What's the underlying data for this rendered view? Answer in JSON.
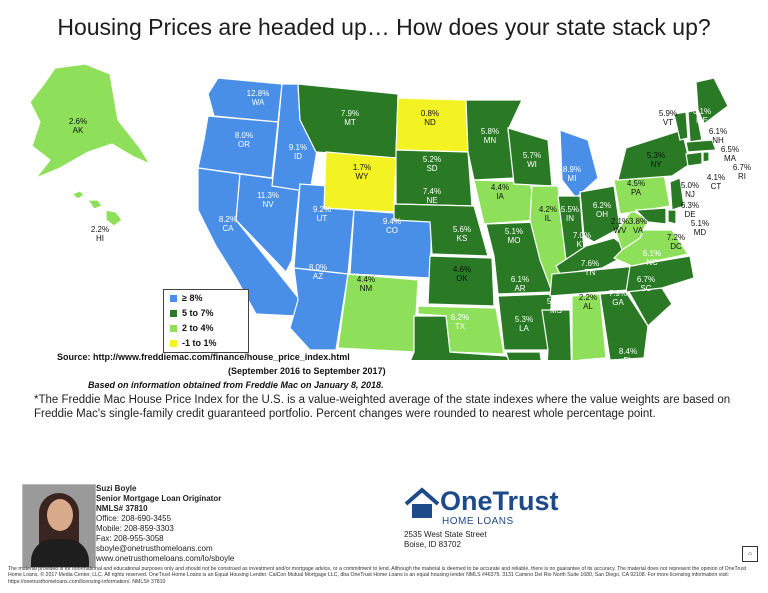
{
  "title": "Housing Prices are headed up… How does your state stack up?",
  "colors": {
    "ge8": "#4a8fe7",
    "5to7": "#2a7a25",
    "2to4": "#8ee05a",
    "neg1to1": "#f3f223"
  },
  "legend": [
    {
      "label": "≥ 8%",
      "color": "#4a8fe7"
    },
    {
      "label": "5 to 7%",
      "color": "#2a7a25"
    },
    {
      "label": "2 to 4%",
      "color": "#8ee05a"
    },
    {
      "label": "-1 to 1%",
      "color": "#f3f223"
    }
  ],
  "states": [
    {
      "abbr": "WA",
      "pct": "12.8%"
    },
    {
      "abbr": "OR",
      "pct": "8.0%"
    },
    {
      "abbr": "CA",
      "pct": "8.2%"
    },
    {
      "abbr": "NV",
      "pct": "11.3%"
    },
    {
      "abbr": "ID",
      "pct": "9.1%"
    },
    {
      "abbr": "UT",
      "pct": "9.2%"
    },
    {
      "abbr": "AZ",
      "pct": "8.0%"
    },
    {
      "abbr": "MT",
      "pct": "7.9%"
    },
    {
      "abbr": "WY",
      "pct": "1.7%"
    },
    {
      "abbr": "CO",
      "pct": "9.4%"
    },
    {
      "abbr": "NM",
      "pct": "4.4%"
    },
    {
      "abbr": "ND",
      "pct": "0.8%"
    },
    {
      "abbr": "SD",
      "pct": "5.2%"
    },
    {
      "abbr": "NE",
      "pct": "7.4%"
    },
    {
      "abbr": "KS",
      "pct": "5.6%"
    },
    {
      "abbr": "OK",
      "pct": "4.6%"
    },
    {
      "abbr": "TX",
      "pct": "6.2%"
    },
    {
      "abbr": "MN",
      "pct": "5.8%"
    },
    {
      "abbr": "IA",
      "pct": "4.4%"
    },
    {
      "abbr": "MO",
      "pct": "5.1%"
    },
    {
      "abbr": "AR",
      "pct": "6.1%"
    },
    {
      "abbr": "LA",
      "pct": "5.3%"
    },
    {
      "abbr": "WI",
      "pct": "5.7%"
    },
    {
      "abbr": "IL",
      "pct": "4.2%"
    },
    {
      "abbr": "MS",
      "pct": "5.6%"
    },
    {
      "abbr": "MI",
      "pct": "8.9%"
    },
    {
      "abbr": "IN",
      "pct": "5.5%"
    },
    {
      "abbr": "KY",
      "pct": "7.0%"
    },
    {
      "abbr": "TN",
      "pct": "7.6%"
    },
    {
      "abbr": "AL",
      "pct": "2.2%"
    },
    {
      "abbr": "OH",
      "pct": "6.2%"
    },
    {
      "abbr": "GA",
      "pct": "7.9%"
    },
    {
      "abbr": "FL",
      "pct": "8.4%"
    },
    {
      "abbr": "SC",
      "pct": "6.7%"
    },
    {
      "abbr": "NC",
      "pct": "6.1%"
    },
    {
      "abbr": "VA",
      "pct": "3.8%"
    },
    {
      "abbr": "WV",
      "pct": "2.1%"
    },
    {
      "abbr": "PA",
      "pct": "4.5%"
    },
    {
      "abbr": "NY",
      "pct": "5.3%"
    },
    {
      "abbr": "VT",
      "pct": "5.9%"
    },
    {
      "abbr": "ME",
      "pct": "6.1%"
    },
    {
      "abbr": "NH",
      "pct": "6.1%"
    },
    {
      "abbr": "MA",
      "pct": "6.5%"
    },
    {
      "abbr": "RI",
      "pct": "6.7%"
    },
    {
      "abbr": "CT",
      "pct": "4.1%"
    },
    {
      "abbr": "NJ",
      "pct": "5.0%"
    },
    {
      "abbr": "DE",
      "pct": "6.3%"
    },
    {
      "abbr": "MD",
      "pct": "5.1%"
    },
    {
      "abbr": "DC",
      "pct": "7.2%"
    },
    {
      "abbr": "AK",
      "pct": "2.6%"
    },
    {
      "abbr": "HI",
      "pct": "2.2%"
    }
  ],
  "source": "Source:  http://www.freddiemac.com/finance/house_price_index.html",
  "source_range": "(September 2016 to September 2017)",
  "source_note": "Based on information obtained from Freddie Mac on January 8, 2018.",
  "footnote": "*The Freddie Mac House Price Index for the U.S. is a value-weighted average of the state indexes where the value weights are based on Freddie Mac's single-family credit guaranteed portfolio. Percent changes were rounded to nearest whole percentage point.",
  "agent": {
    "name": "Suzi Boyle",
    "role": "Senior Mortgage Loan Originator",
    "nmls": "NMLS# 37810",
    "office": "Office: 208-690-3455",
    "mobile": "Mobile: 208-859-3303",
    "fax": "Fax: 208-955-3058",
    "email": "sboyle@onetrusthomeloans.com",
    "web": "www.onetrusthomeloans.com/lo/sboyle"
  },
  "company": {
    "name": "OneTrust",
    "sub": "HOME LOANS",
    "addr1": "2535 West State Street",
    "addr2": "Boise, ID 83702"
  },
  "fine_print": "The material provided is for informational and educational purposes only and should not be construed as investment and/or mortgage advice, or a commitment to lend. Although the material is deemed to be accurate and reliable, there is no guarantee of its accuracy. The material does not represent the opinion of OneTrust Home Loans. © 2017 Media Center, LLC. All rights reserved. OneTrust Home Loans is an Equal Housing Lender. CalCon Mutual Mortgage LLC, dba OneTrust Home Loans is an equal housing lender NMLS #46375. 3131 Camino Del Rio North Suite 1680, San Diego, CA 92108. For more licensing information visit: https://onetrusthomeloans.com/licensing-information/. NMLS# 37810"
}
